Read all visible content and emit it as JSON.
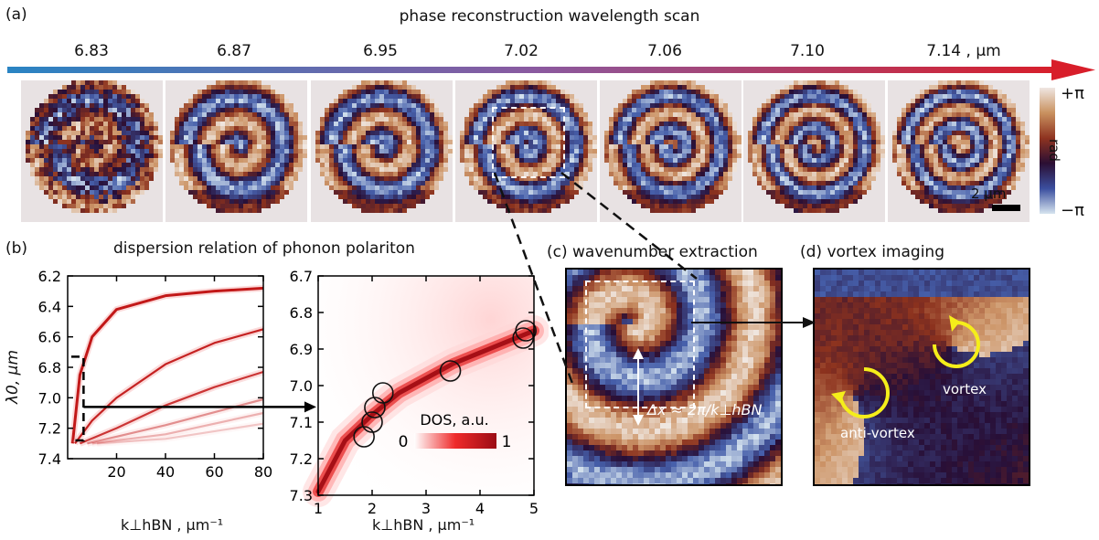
{
  "panel_a": {
    "tag": "(a)",
    "title": "phase reconstruction wavelength scan",
    "wavelengths": [
      "6.83",
      "6.87",
      "6.95",
      "7.02",
      "7.06",
      "7.10",
      "7.14 , μm"
    ],
    "colorbar": {
      "top": "+π",
      "label": "rad",
      "bottom": "−π"
    },
    "scalebar": "2 μm"
  },
  "panel_b": {
    "tag": "(b)",
    "title": "dispersion relation of phonon polariton",
    "ylabel": "λ0, μm",
    "xlabel": "k⊥hBN , μm⁻¹"
  },
  "panel_c": {
    "title": "(c) wavenumber extraction",
    "annotation": "Δx ≈ 2π/k⊥hBN"
  },
  "panel_d": {
    "title": "(d)   vortex imaging",
    "vortex_label": "vortex",
    "antivortex_label": "anti-vortex"
  },
  "chart_data": [
    {
      "type": "line",
      "panel": "b-left",
      "xlim": [
        0,
        80
      ],
      "ylim": [
        7.4,
        6.2
      ],
      "xticks": [
        20,
        40,
        60,
        80
      ],
      "yticks": [
        6.2,
        6.4,
        6.6,
        6.8,
        7.0,
        7.2,
        7.4
      ],
      "series": [
        {
          "x": [
            2,
            5,
            10,
            20,
            40,
            60,
            80
          ],
          "values": [
            7.3,
            6.85,
            6.6,
            6.42,
            6.33,
            6.3,
            6.28
          ]
        },
        {
          "x": [
            3,
            10,
            20,
            40,
            60,
            80
          ],
          "values": [
            7.3,
            7.15,
            7.0,
            6.78,
            6.64,
            6.55
          ]
        },
        {
          "x": [
            5,
            20,
            40,
            60,
            80
          ],
          "values": [
            7.3,
            7.2,
            7.05,
            6.93,
            6.83
          ]
        },
        {
          "x": [
            8,
            40,
            80
          ],
          "values": [
            7.3,
            7.18,
            7.01
          ]
        },
        {
          "x": [
            10,
            40,
            80
          ],
          "values": [
            7.3,
            7.24,
            7.1
          ]
        },
        {
          "x": [
            12,
            40,
            80
          ],
          "values": [
            7.3,
            7.27,
            7.17
          ]
        }
      ]
    },
    {
      "type": "scatter",
      "panel": "b-right",
      "xlim": [
        1,
        5
      ],
      "ylim": [
        7.3,
        6.7
      ],
      "xticks": [
        1,
        2,
        3,
        4,
        5
      ],
      "yticks": [
        6.7,
        6.8,
        6.9,
        7.0,
        7.1,
        7.2,
        7.3
      ],
      "curve": {
        "x": [
          1,
          1.5,
          2,
          2.5,
          3,
          3.5,
          4,
          4.5,
          5
        ],
        "values": [
          7.29,
          7.15,
          7.08,
          7.02,
          6.98,
          6.94,
          6.91,
          6.88,
          6.85
        ]
      },
      "points": [
        {
          "x": 1.85,
          "y": 7.14
        },
        {
          "x": 2.0,
          "y": 7.1
        },
        {
          "x": 2.05,
          "y": 7.06
        },
        {
          "x": 2.2,
          "y": 7.02
        },
        {
          "x": 3.45,
          "y": 6.96
        },
        {
          "x": 4.8,
          "y": 6.87
        },
        {
          "x": 4.85,
          "y": 6.85
        }
      ],
      "legend": {
        "title": "DOS,  a.u.",
        "min": "0",
        "max": "1"
      }
    }
  ],
  "colors": {
    "dos": "#cc1a1a",
    "arrow_start": "#2e86c1",
    "arrow_end": "#d91e2a",
    "marker": "#111111",
    "vortex": "#f5ee1a"
  }
}
